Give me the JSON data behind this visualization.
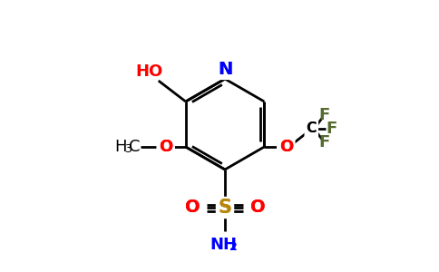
{
  "background_color": "#ffffff",
  "atom_colors": {
    "N": "#0000ff",
    "O": "#ff0000",
    "S": "#b8860b",
    "F": "#556b2f",
    "C": "#000000",
    "H": "#000000"
  },
  "line_color": "#000000",
  "line_width": 2.0,
  "figsize": [
    4.84,
    3.0
  ],
  "dpi": 100
}
